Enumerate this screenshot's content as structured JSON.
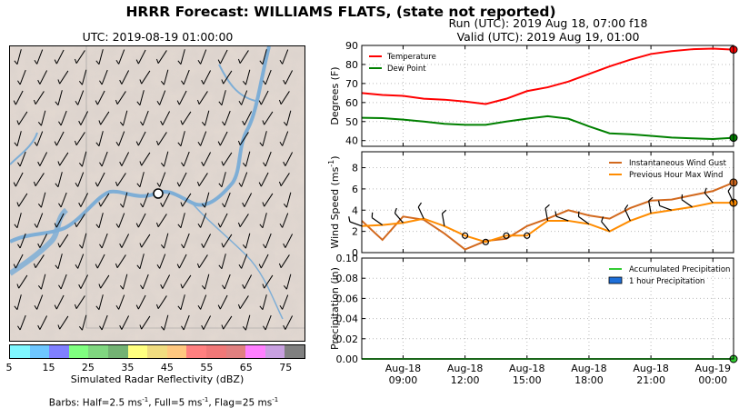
{
  "title": "HRRR Forecast: WILLIAMS FLATS, (state not reported)",
  "map": {
    "title": "UTC: 2019-08-19 01:00:00",
    "colorbar": {
      "ticks": [
        "5",
        "15",
        "25",
        "35",
        "45",
        "55",
        "65",
        "75"
      ],
      "colors": [
        "#7ff7ff",
        "#6ec6ff",
        "#8080ff",
        "#80ff80",
        "#80d680",
        "#73b273",
        "#ffff80",
        "#f0dc80",
        "#ffc880",
        "#ff8080",
        "#f07878",
        "#e08080",
        "#ff80ff",
        "#c8a0e0",
        "#808080"
      ],
      "label": "Simulated Radar Reflectivity (dBZ)"
    },
    "barbs_note_prefix": "Barbs: Half=2.5 ms",
    "barbs_note_mid1": ", Full=5 ms",
    "barbs_note_mid2": ", Flag=25 ms",
    "barbs_note_exp": "-1"
  },
  "run_line": "Run (UTC): 2019 Aug 18, 07:00 f18",
  "valid_line": "Valid (UTC): 2019 Aug 19, 01:00",
  "chart_data": [
    {
      "type": "line",
      "ylabel": "Degrees (F)",
      "ylim": [
        37,
        90
      ],
      "yticks": [
        "40",
        "50",
        "60",
        "70",
        "80",
        "90"
      ],
      "x_hours": [
        7,
        8,
        9,
        10,
        11,
        12,
        13,
        14,
        15,
        16,
        17,
        18,
        19,
        20,
        21,
        22,
        23,
        24,
        25
      ],
      "legend_position": "top-left",
      "series": [
        {
          "name": "Temperature",
          "color": "#ff0000",
          "values": [
            65,
            64,
            63.5,
            62,
            61.5,
            60.5,
            59.2,
            62,
            66,
            68,
            71,
            75,
            79,
            82.5,
            85.5,
            87,
            88,
            88.3,
            87.8
          ]
        },
        {
          "name": "Dew Point",
          "color": "#008000",
          "values": [
            52,
            51.8,
            51,
            50,
            48.8,
            48.3,
            48.3,
            50,
            51.5,
            52.8,
            51.5,
            47.5,
            43.8,
            43.3,
            42.5,
            41.6,
            41.2,
            40.8,
            41.5
          ]
        }
      ]
    },
    {
      "type": "line",
      "ylabel": "Wind Speed (ms",
      "ylabel_exp": "-1",
      "ylim": [
        0,
        9.5
      ],
      "yticks": [
        "0",
        "2",
        "4",
        "6",
        "8"
      ],
      "x_hours": [
        7,
        8,
        9,
        10,
        11,
        12,
        13,
        14,
        15,
        16,
        17,
        18,
        19,
        20,
        21,
        22,
        23,
        24,
        25
      ],
      "legend_position": "top-right",
      "series": [
        {
          "name": "Instantaneous Wind Gust",
          "color": "#d2691e",
          "values": [
            3,
            1.2,
            3.4,
            3.1,
            1.8,
            0.3,
            1.1,
            1.3,
            2.5,
            3.2,
            4,
            3.5,
            3.2,
            4.2,
            4.9,
            5,
            5.4,
            5.8,
            6.6
          ]
        },
        {
          "name": "Previous Hour Max Wind",
          "color": "#ff8c00",
          "values": [
            2.5,
            2.6,
            2.8,
            3.2,
            2.5,
            1.6,
            1,
            1.6,
            1.6,
            3,
            3,
            2.7,
            2,
            3,
            3.7,
            4,
            4.3,
            4.7,
            4.7
          ]
        }
      ]
    },
    {
      "type": "line",
      "ylabel": "Precipitation (in)",
      "ylim": [
        0,
        0.1
      ],
      "yticks": [
        "0.00",
        "0.02",
        "0.04",
        "0.06",
        "0.08",
        "0.10"
      ],
      "legend_position": "top-right",
      "xtick_labels": [
        [
          "Aug-18",
          "09:00"
        ],
        [
          "Aug-18",
          "12:00"
        ],
        [
          "Aug-18",
          "15:00"
        ],
        [
          "Aug-18",
          "18:00"
        ],
        [
          "Aug-18",
          "21:00"
        ],
        [
          "Aug-19",
          "00:00"
        ]
      ],
      "xtick_hours": [
        9,
        12,
        15,
        18,
        21,
        24
      ],
      "series": [
        {
          "name": "Accumulated Precipitation",
          "color": "#33cc33",
          "values": [
            0,
            0,
            0,
            0,
            0,
            0,
            0,
            0,
            0,
            0,
            0,
            0,
            0,
            0,
            0,
            0,
            0,
            0,
            0
          ]
        },
        {
          "name": "1 hour Precipitation",
          "color": "#1e6fd9",
          "kind": "bar",
          "values": [
            0,
            0,
            0,
            0,
            0,
            0,
            0,
            0,
            0,
            0,
            0,
            0,
            0,
            0,
            0,
            0,
            0,
            0,
            0
          ]
        }
      ]
    }
  ]
}
